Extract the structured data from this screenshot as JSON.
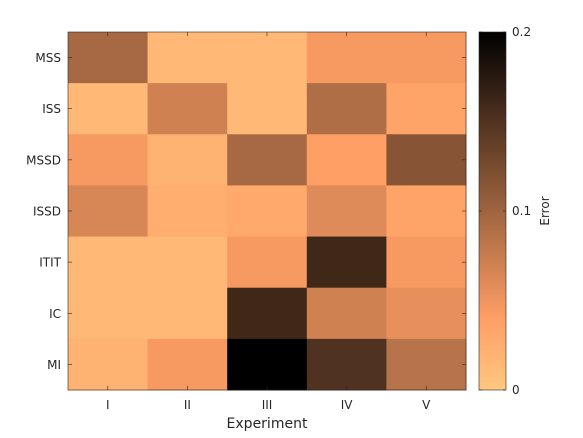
{
  "chart_data": {
    "type": "heatmap",
    "title": "",
    "xlabel": "Experiment",
    "ylabel": "",
    "x_categories": [
      "I",
      "II",
      "III",
      "IV",
      "V"
    ],
    "y_categories": [
      "MSS",
      "ISS",
      "MSSD",
      "ISSD",
      "ITIT",
      "IC",
      "MI"
    ],
    "values": [
      [
        0.095,
        0.015,
        0.015,
        0.045,
        0.045
      ],
      [
        0.015,
        0.07,
        0.015,
        0.09,
        0.035
      ],
      [
        0.045,
        0.02,
        0.095,
        0.04,
        0.115
      ],
      [
        0.065,
        0.025,
        0.03,
        0.06,
        0.035
      ],
      [
        0.015,
        0.015,
        0.045,
        0.16,
        0.045
      ],
      [
        0.015,
        0.015,
        0.16,
        0.07,
        0.055
      ],
      [
        0.02,
        0.045,
        0.2,
        0.15,
        0.085
      ]
    ],
    "colorbar": {
      "label": "Error",
      "range": [
        0,
        0.2
      ],
      "ticks": [
        0,
        0.1,
        0.2
      ],
      "tick_labels": [
        "0",
        "0.1",
        "0.2"
      ],
      "colormap": "copper (reversed)"
    },
    "grid": false,
    "legend": "none"
  }
}
